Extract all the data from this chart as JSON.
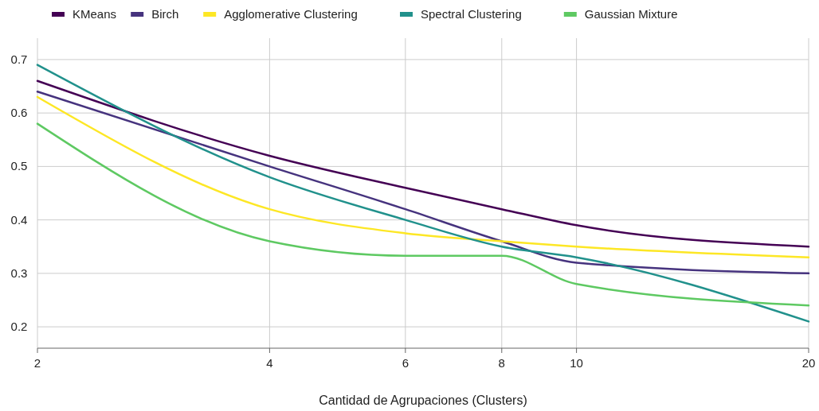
{
  "chart_data": {
    "type": "line",
    "xlabel": "Cantidad de Agrupaciones (Clusters)",
    "x": [
      2,
      4,
      6,
      8,
      10,
      20
    ],
    "log": "x",
    "xlim": [
      2,
      20
    ],
    "xticks": [
      2,
      4,
      6,
      8,
      10,
      20
    ],
    "ylim": [
      0.16,
      0.74
    ],
    "yticks": [
      0.2,
      0.3,
      0.4,
      0.5,
      0.6,
      0.7
    ],
    "grid": true,
    "legend": "top left",
    "marker": "none",
    "line_style": "solid",
    "series": [
      {
        "name": "KMeans",
        "color": "#440154",
        "values": [
          0.66,
          0.52,
          0.46,
          0.42,
          0.39,
          0.35
        ]
      },
      {
        "name": "Birch",
        "color": "#46337e",
        "values": [
          0.64,
          0.5,
          0.42,
          0.36,
          0.32,
          0.3
        ]
      },
      {
        "name": "Agglomerative Clustering",
        "color": "#fde725",
        "values": [
          0.63,
          0.42,
          0.375,
          0.36,
          0.35,
          0.33
        ]
      },
      {
        "name": "Spectral Clustering",
        "color": "#21918c",
        "values": [
          0.69,
          0.48,
          0.4,
          0.35,
          0.33,
          0.21
        ]
      },
      {
        "name": "Gaussian Mixture",
        "color": "#5ec962",
        "values": [
          0.58,
          0.36,
          0.333,
          0.333,
          0.28,
          0.24
        ]
      }
    ]
  }
}
